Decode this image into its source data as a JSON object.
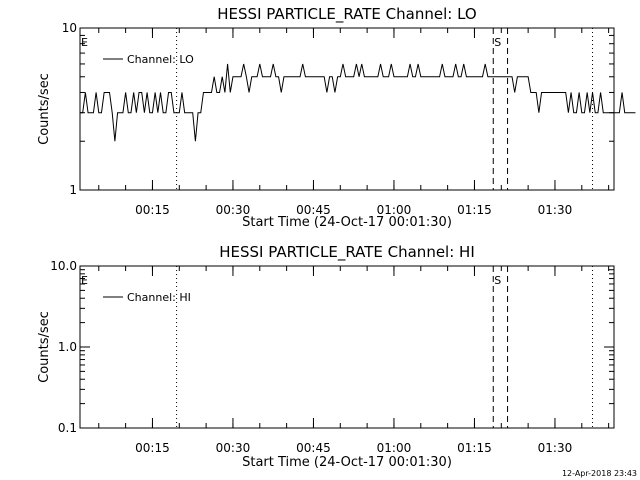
{
  "timestamp": "12-Apr-2018 23:43",
  "chart_data": [
    {
      "type": "line",
      "title": "HESSI PARTICLE_RATE Channel: LO",
      "xlabel": "Start Time (24-Oct-17 00:01:30)",
      "ylabel": "Counts/sec",
      "yscale": "log",
      "ylim": [
        1,
        10
      ],
      "y_ticks": [
        {
          "value": 1,
          "label": "1"
        },
        {
          "value": 10,
          "label": "10"
        }
      ],
      "xlim": [
        "00:01:30",
        "01:41:00"
      ],
      "x_ticks": [
        "00:15",
        "00:30",
        "00:45",
        "01:00",
        "01:15",
        "01:30"
      ],
      "legend": {
        "label": "Channel: LO",
        "position": "top-left"
      },
      "markers": [
        {
          "label": "E",
          "time": "00:01:30",
          "style": "text"
        },
        {
          "label": "",
          "time": "00:19:30",
          "style": "dotted"
        },
        {
          "label": "S",
          "time": "01:18:30",
          "style": "dashed"
        },
        {
          "label": "",
          "time": "01:21:10",
          "style": "dashed"
        },
        {
          "label": "",
          "time": "01:37:00",
          "style": "dotted"
        }
      ],
      "series": [
        {
          "name": "Channel: LO",
          "x_step_minutes": 0.5,
          "x_start": "00:01:30",
          "values": [
            3,
            3,
            4,
            3,
            3,
            3,
            4,
            3,
            3,
            4,
            4,
            4,
            3,
            2,
            3,
            3,
            3,
            4,
            3,
            3,
            4,
            3,
            4,
            4,
            3,
            4,
            3,
            3,
            4,
            3,
            4,
            3,
            3,
            4,
            4,
            3,
            3,
            3,
            4,
            3,
            3,
            3,
            3,
            2,
            3,
            3,
            4,
            4,
            4,
            4,
            5,
            4,
            4,
            5,
            4,
            6,
            4,
            5,
            5,
            5,
            5,
            6,
            5,
            4,
            5,
            5,
            5,
            6,
            5,
            5,
            5,
            5,
            6,
            5,
            5,
            4,
            5,
            5,
            5,
            5,
            5,
            5,
            5,
            6,
            5,
            5,
            5,
            5,
            5,
            5,
            5,
            5,
            4,
            5,
            5,
            4,
            5,
            5,
            6,
            5,
            5,
            5,
            5,
            6,
            5,
            6,
            5,
            5,
            5,
            5,
            5,
            5,
            6,
            5,
            5,
            5,
            6,
            5,
            5,
            5,
            5,
            5,
            5,
            6,
            5,
            5,
            6,
            5,
            5,
            5,
            5,
            5,
            5,
            5,
            5,
            6,
            5,
            5,
            5,
            5,
            6,
            5,
            5,
            6,
            5,
            5,
            5,
            5,
            5,
            5,
            5,
            6,
            5,
            5,
            5,
            5,
            5,
            5,
            5,
            5,
            5,
            5,
            4,
            5,
            5,
            5,
            5,
            5,
            4,
            4,
            4,
            3,
            4,
            4,
            4,
            4,
            4,
            4,
            4,
            4,
            4,
            4,
            3,
            4,
            3,
            3,
            4,
            3,
            3,
            4,
            3,
            4,
            3,
            3,
            4,
            3,
            3,
            3,
            3,
            3,
            3,
            3,
            4,
            3,
            3,
            3,
            3,
            3
          ]
        }
      ]
    },
    {
      "type": "line",
      "title": "HESSI PARTICLE_RATE Channel: HI",
      "xlabel": "Start Time (24-Oct-17 00:01:30)",
      "ylabel": "Counts/sec",
      "yscale": "log",
      "ylim": [
        0.1,
        10
      ],
      "y_ticks": [
        {
          "value": 0.1,
          "label": "0.1"
        },
        {
          "value": 1,
          "label": "1.0"
        },
        {
          "value": 10,
          "label": "10.0"
        }
      ],
      "xlim": [
        "00:01:30",
        "01:41:00"
      ],
      "x_ticks": [
        "00:15",
        "00:30",
        "00:45",
        "01:00",
        "01:15",
        "01:30"
      ],
      "legend": {
        "label": "Channel: HI",
        "position": "top-left"
      },
      "markers": [
        {
          "label": "E",
          "time": "00:01:30",
          "style": "text"
        },
        {
          "label": "",
          "time": "00:19:30",
          "style": "dotted"
        },
        {
          "label": "S",
          "time": "01:18:30",
          "style": "dashed"
        },
        {
          "label": "",
          "time": "01:21:10",
          "style": "dashed"
        },
        {
          "label": "",
          "time": "01:37:00",
          "style": "dotted"
        }
      ],
      "series": [
        {
          "name": "Channel: HI",
          "values": []
        }
      ]
    }
  ]
}
